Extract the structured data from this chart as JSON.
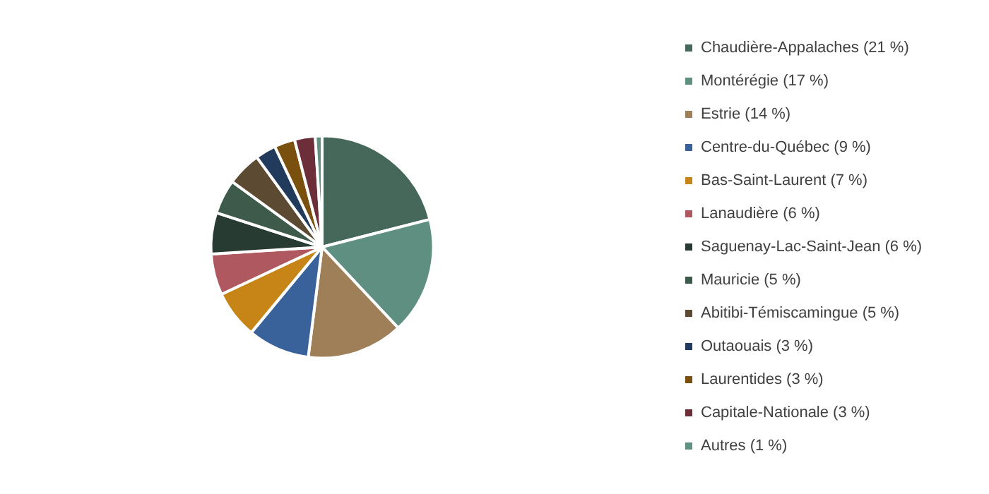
{
  "chart_data": {
    "type": "pie",
    "categories": [
      "Chaudière-Appalaches (21 %)",
      "Montérégie (17 %)",
      "Estrie (14 %)",
      "Centre-du-Québec (9 %)",
      "Bas-Saint-Laurent (7 %)",
      "Lanaudière (6 %)",
      "Saguenay-Lac-Saint-Jean (6 %)",
      "Mauricie (5 %)",
      "Abitibi-Témiscamingue (5 %)",
      "Outaouais (3 %)",
      "Laurentides (3 %)",
      "Capitale-Nationale (3 %)",
      "Autres (1 %)"
    ],
    "values": [
      21,
      17,
      14,
      9,
      7,
      6,
      6,
      5,
      5,
      3,
      3,
      3,
      1
    ],
    "colors": [
      "#46685a",
      "#5f8f80",
      "#9e7f58",
      "#3a629a",
      "#c78518",
      "#b0585f",
      "#283b32",
      "#3d5a4b",
      "#5c4a33",
      "#223a5c",
      "#7a500f",
      "#6c2f39",
      "#5f9080"
    ],
    "legend": "right"
  }
}
